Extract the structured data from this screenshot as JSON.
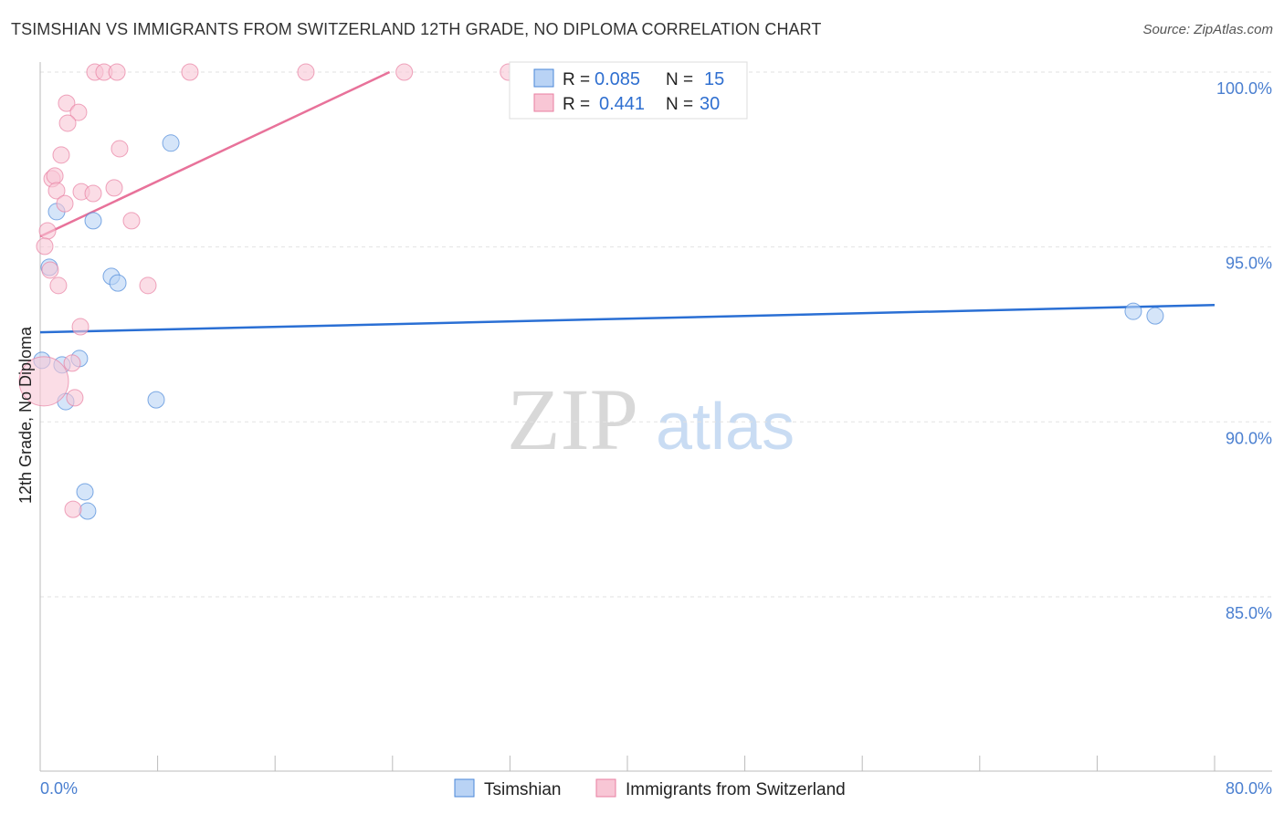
{
  "title": "TSIMSHIAN VS IMMIGRANTS FROM SWITZERLAND 12TH GRADE, NO DIPLOMA CORRELATION CHART",
  "source": "Source: ZipAtlas.com",
  "watermark": "ZIPatlas",
  "chart_data": {
    "type": "scatter",
    "title": "TSIMSHIAN VS IMMIGRANTS FROM SWITZERLAND 12TH GRADE, NO DIPLOMA CORRELATION CHART",
    "xlabel": "",
    "ylabel": "12th Grade, No Diploma",
    "xlim": [
      0,
      80
    ],
    "ylim": [
      80,
      100.3
    ],
    "x_tick_labels": [
      "0.0%",
      "80.0%"
    ],
    "y_ticks": [
      100,
      95,
      90,
      85
    ],
    "y_tick_labels": [
      "100.0%",
      "95.0%",
      "90.0%",
      "85.0%"
    ],
    "grid": true,
    "legend_placement": "bottom",
    "series": [
      {
        "name": "Tsimshian",
        "color": "#4a87d8",
        "fill": "#b9d3f5",
        "R": "0.085",
        "N": "15",
        "trend": [
          [
            0,
            92.56
          ],
          [
            80,
            93.34
          ]
        ],
        "trend_color": "#2a6fd4",
        "points": [
          [
            8.9,
            97.97
          ],
          [
            1.12,
            96.01
          ],
          [
            3.61,
            95.75
          ],
          [
            0.62,
            94.42
          ],
          [
            4.85,
            94.16
          ],
          [
            5.29,
            93.97
          ],
          [
            0.12,
            91.76
          ],
          [
            1.49,
            91.63
          ],
          [
            2.67,
            91.81
          ],
          [
            1.74,
            90.58
          ],
          [
            7.9,
            90.63
          ],
          [
            3.05,
            88.0
          ],
          [
            3.23,
            87.45
          ],
          [
            74.46,
            93.16
          ],
          [
            75.95,
            93.03
          ]
        ]
      },
      {
        "name": "Immigrants from Switzerland",
        "color": "#e87fa1",
        "fill": "#f8c6d5",
        "R": "0.441",
        "N": "30",
        "trend": [
          [
            0,
            95.3
          ],
          [
            23.8,
            100
          ]
        ],
        "trend_color": "#e8729a",
        "points": [
          [
            3.73,
            100
          ],
          [
            4.35,
            100
          ],
          [
            5.23,
            100
          ],
          [
            10.2,
            100
          ],
          [
            18.1,
            100
          ],
          [
            24.8,
            100
          ],
          [
            31.9,
            100
          ],
          [
            1.8,
            99.11
          ],
          [
            2.61,
            98.85
          ],
          [
            1.87,
            98.54
          ],
          [
            1.43,
            97.63
          ],
          [
            5.41,
            97.81
          ],
          [
            0.81,
            96.95
          ],
          [
            1.0,
            97.03
          ],
          [
            1.12,
            96.61
          ],
          [
            1.68,
            96.24
          ],
          [
            2.8,
            96.58
          ],
          [
            3.61,
            96.53
          ],
          [
            5.04,
            96.69
          ],
          [
            6.22,
            95.75
          ],
          [
            0.5,
            95.46
          ],
          [
            0.31,
            95.02
          ],
          [
            0.68,
            94.34
          ],
          [
            1.24,
            93.9
          ],
          [
            7.34,
            93.9
          ],
          [
            2.74,
            92.72
          ],
          [
            2.18,
            91.68
          ],
          [
            0.25,
            91.16,
            "large"
          ],
          [
            2.36,
            90.69
          ],
          [
            2.24,
            87.5
          ]
        ]
      }
    ]
  },
  "legend": {
    "r_label": "R =",
    "n_label": "N ="
  }
}
